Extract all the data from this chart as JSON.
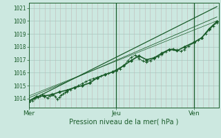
{
  "title": "",
  "xlabel": "Pression niveau de la mer( hPa )",
  "ylabel": "",
  "bg_color": "#cce8e0",
  "plot_bg_color": "#cce8e0",
  "grid_color_h": "#a8c8c0",
  "grid_color_v": "#c0b8b8",
  "line_color": "#1a5c2a",
  "axis_label_color": "#1a5c2a",
  "ylim": [
    1013.3,
    1021.4
  ],
  "yticks": [
    1014,
    1015,
    1016,
    1017,
    1018,
    1019,
    1020,
    1021
  ],
  "day_labels": [
    "Mer",
    "Jeu",
    "Ven"
  ],
  "day_positions": [
    0.0,
    0.46,
    0.87
  ],
  "xlim": [
    0.0,
    1.0
  ],
  "vline_positions": [
    0.46,
    0.87
  ],
  "num_v_gridlines": 36,
  "marker_size": 2.5,
  "series_main_x": [
    0.0,
    0.02,
    0.03,
    0.05,
    0.06,
    0.07,
    0.08,
    0.1,
    0.11,
    0.12,
    0.13,
    0.14,
    0.15,
    0.16,
    0.17,
    0.18,
    0.19,
    0.2,
    0.22,
    0.24,
    0.26,
    0.28,
    0.3,
    0.32,
    0.34,
    0.36,
    0.38,
    0.4,
    0.42,
    0.44,
    0.46,
    0.48,
    0.5,
    0.52,
    0.54,
    0.56,
    0.58,
    0.6,
    0.62,
    0.64,
    0.66,
    0.68,
    0.7,
    0.72,
    0.74,
    0.76,
    0.78,
    0.8,
    0.82,
    0.84,
    0.87,
    0.89,
    0.91,
    0.93,
    0.95,
    0.97,
    0.99
  ],
  "series_main_y": [
    1013.7,
    1013.85,
    1014.0,
    1014.1,
    1014.2,
    1014.3,
    1014.15,
    1014.05,
    1014.2,
    1014.35,
    1014.3,
    1014.15,
    1013.95,
    1014.1,
    1014.25,
    1014.35,
    1014.45,
    1014.55,
    1014.7,
    1014.85,
    1015.0,
    1015.15,
    1015.3,
    1015.45,
    1015.55,
    1015.65,
    1015.75,
    1015.85,
    1015.95,
    1016.05,
    1016.15,
    1016.3,
    1016.55,
    1016.9,
    1017.2,
    1017.35,
    1017.1,
    1016.9,
    1016.8,
    1016.95,
    1017.1,
    1017.25,
    1017.4,
    1017.6,
    1017.8,
    1017.85,
    1017.75,
    1017.65,
    1017.8,
    1018.05,
    1018.3,
    1018.5,
    1018.7,
    1019.0,
    1019.3,
    1019.6,
    1019.85
  ],
  "series_bold_x": [
    0.0,
    0.04,
    0.08,
    0.12,
    0.16,
    0.2,
    0.24,
    0.28,
    0.32,
    0.36,
    0.4,
    0.44,
    0.46,
    0.5,
    0.54,
    0.58,
    0.62,
    0.66,
    0.7,
    0.74,
    0.78,
    0.82,
    0.87,
    0.91,
    0.95,
    0.99
  ],
  "series_bold_y": [
    1013.8,
    1014.15,
    1014.2,
    1014.3,
    1014.5,
    1014.65,
    1014.85,
    1015.0,
    1015.2,
    1015.6,
    1015.85,
    1016.05,
    1016.2,
    1016.55,
    1016.95,
    1017.3,
    1017.0,
    1017.15,
    1017.5,
    1017.8,
    1017.7,
    1018.0,
    1018.35,
    1018.7,
    1019.4,
    1019.95
  ],
  "trend1_x": [
    0.0,
    0.99
  ],
  "trend1_y": [
    1013.8,
    1021.1
  ],
  "trend2_x": [
    0.0,
    0.99
  ],
  "trend2_y": [
    1014.05,
    1020.3
  ],
  "trend3_x": [
    0.0,
    0.99
  ],
  "trend3_y": [
    1014.2,
    1020.0
  ]
}
